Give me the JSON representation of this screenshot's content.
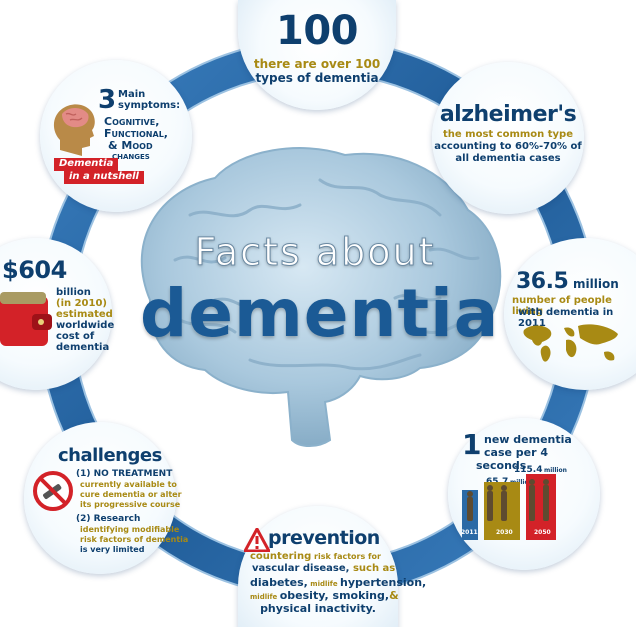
{
  "title": {
    "line1": "Facts about",
    "line2": "dementia"
  },
  "facts": {
    "types": {
      "number": "100",
      "line1": "there are over 100",
      "line2": "types of dementia"
    },
    "alzheimers": {
      "title": "alzheimer's",
      "line1": "the most common type",
      "line2": "accounting to 60%-70% of",
      "line3": "all dementia cases"
    },
    "symptoms": {
      "number": "3",
      "main": "Main",
      "symptoms": "symptoms:",
      "s1": "Cognitive,",
      "s2": "Functional,",
      "s3": "& Mood",
      "s4": "changes",
      "ribbon1": "Dementia",
      "ribbon2": "in a nutshell"
    },
    "cost": {
      "amount": "$604",
      "l1": "billion",
      "l2": "(in 2010)",
      "l3": "estimated",
      "l4": "worldwide",
      "l5": "cost of",
      "l6": "dementia"
    },
    "people": {
      "number": "36.5",
      "unit": "million",
      "line1": "number of people living",
      "line2": "with dementia in 2011"
    },
    "challenges": {
      "title": "challenges",
      "c1a": "(1) NO TREATMENT",
      "c1b": "currently available to",
      "c1c": "cure dementia or alter",
      "c1d": "its progressive course",
      "c2a": "(2) Research",
      "c2b": "identifying modifiable",
      "c2c": "risk factors of dementia",
      "c2d": "is very limited"
    },
    "newcases": {
      "number": "1",
      "line1": "new dementia",
      "line2": "case per 4",
      "line3": "seconds",
      "v1": "65.7",
      "u1": "million",
      "v2": "115.4",
      "u2": "million",
      "y1": "2011",
      "y2": "2030",
      "y3": "2050"
    },
    "prevention": {
      "title": "prevention",
      "l1a": "countering",
      "l1b": " risk factors for",
      "l2a": "vascular disease,",
      "l2b": " such as",
      "l3a": "diabetes,",
      "l3b": " midlife ",
      "l3c": "hypertension,",
      "l4a": "midlife ",
      "l4b": "obesity, smoking,",
      "l4c": "&",
      "l5": "physical inactivity."
    }
  },
  "colors": {
    "ring": "#2b6aa6",
    "navy": "#0e3f6e",
    "gold": "#a88a14",
    "red": "#d32228",
    "brain": "#a9c8dd"
  }
}
